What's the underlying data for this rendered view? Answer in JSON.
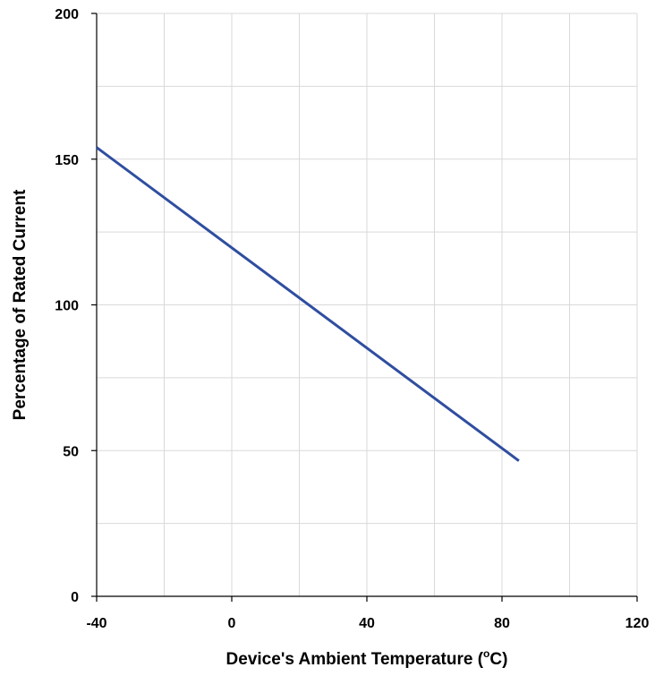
{
  "chart_data": {
    "type": "line",
    "title": "",
    "xlabel": "Device's Ambient Temperature (°C)",
    "xlabel_parts": {
      "prefix": "Device's Ambient Temperature (",
      "superscript": "o",
      "suffix": "C)"
    },
    "ylabel": "Percentage of Rated Current",
    "xlim": [
      -40,
      120
    ],
    "ylim": [
      0,
      200
    ],
    "x_ticks": [
      -40,
      0,
      40,
      80,
      120
    ],
    "x_tick_labels": [
      "-40",
      "0",
      "40",
      "80",
      "120"
    ],
    "y_ticks": [
      0,
      50,
      100,
      150,
      200
    ],
    "y_tick_labels": [
      "0",
      "50",
      "100",
      "150",
      "200"
    ],
    "x_minor_gridlines": [
      -20,
      20,
      60,
      100
    ],
    "y_minor_gridlines": [
      25,
      75,
      125,
      175
    ],
    "grid": true,
    "legend": "none",
    "series": [
      {
        "x": [
          -40,
          85
        ],
        "y": [
          154,
          46.5
        ],
        "color": "#2f4ea0"
      }
    ]
  }
}
